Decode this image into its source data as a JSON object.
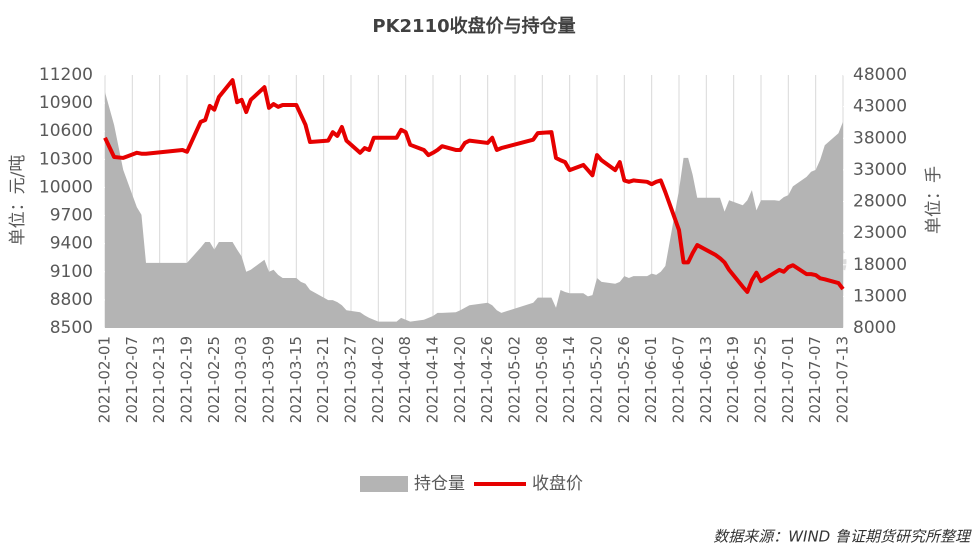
{
  "chart_data": {
    "type": "line",
    "title": "PK2110收盘价与持仓量",
    "y_label": "单位：元/吨",
    "y2_label": "单位：手",
    "source": "数据来源：WIND 鲁证期货研究所整理",
    "x": [
      "2021-02-01",
      "2021-02-03",
      "2021-02-05",
      "2021-02-08",
      "2021-02-09",
      "2021-02-10",
      "2021-02-18",
      "2021-02-19",
      "2021-02-22",
      "2021-02-23",
      "2021-02-24",
      "2021-02-25",
      "2021-02-26",
      "2021-03-01",
      "2021-03-02",
      "2021-03-03",
      "2021-03-04",
      "2021-03-05",
      "2021-03-08",
      "2021-03-09",
      "2021-03-10",
      "2021-03-11",
      "2021-03-12",
      "2021-03-15",
      "2021-03-16",
      "2021-03-17",
      "2021-03-18",
      "2021-03-22",
      "2021-03-23",
      "2021-03-24",
      "2021-03-25",
      "2021-03-26",
      "2021-03-29",
      "2021-03-30",
      "2021-03-31",
      "2021-04-01",
      "2021-04-02",
      "2021-04-06",
      "2021-04-07",
      "2021-04-08",
      "2021-04-09",
      "2021-04-12",
      "2021-04-13",
      "2021-04-14",
      "2021-04-15",
      "2021-04-16",
      "2021-04-19",
      "2021-04-20",
      "2021-04-21",
      "2021-04-22",
      "2021-04-26",
      "2021-04-27",
      "2021-04-28",
      "2021-04-29",
      "2021-05-06",
      "2021-05-07",
      "2021-05-10",
      "2021-05-11",
      "2021-05-12",
      "2021-05-13",
      "2021-05-14",
      "2021-05-17",
      "2021-05-18",
      "2021-05-19",
      "2021-05-20",
      "2021-05-21",
      "2021-05-24",
      "2021-05-25",
      "2021-05-26",
      "2021-05-27",
      "2021-05-28",
      "2021-05-31",
      "2021-06-01",
      "2021-06-02",
      "2021-06-03",
      "2021-06-04",
      "2021-06-07",
      "2021-06-08",
      "2021-06-09",
      "2021-06-10",
      "2021-06-11",
      "2021-06-15",
      "2021-06-16",
      "2021-06-17",
      "2021-06-18",
      "2021-06-21",
      "2021-06-22",
      "2021-06-23",
      "2021-06-24",
      "2021-06-25",
      "2021-06-28",
      "2021-06-29",
      "2021-06-30",
      "2021-07-01",
      "2021-07-02",
      "2021-07-05",
      "2021-07-06",
      "2021-07-07",
      "2021-07-08",
      "2021-07-09",
      "2021-07-12",
      "2021-07-13"
    ],
    "series": [
      {
        "name": "持仓量",
        "type": "area",
        "axis": "y2",
        "color": "#b4b4b4",
        "values": [
          45300,
          40100,
          33000,
          27100,
          25900,
          18300,
          18300,
          18300,
          20700,
          21600,
          21600,
          20400,
          21600,
          21600,
          20400,
          19300,
          16900,
          17200,
          18800,
          16900,
          17200,
          16400,
          15900,
          15900,
          15300,
          15000,
          14000,
          12400,
          12400,
          12100,
          11600,
          10800,
          10500,
          10000,
          9600,
          9300,
          9000,
          9000,
          9600,
          9300,
          9000,
          9300,
          9600,
          9900,
          10400,
          10400,
          10500,
          10800,
          11200,
          11600,
          12000,
          11600,
          10800,
          10400,
          12000,
          12800,
          12800,
          11200,
          14000,
          13700,
          13500,
          13500,
          13000,
          13200,
          15900,
          15300,
          15000,
          15300,
          16200,
          15900,
          16200,
          16200,
          16600,
          16400,
          16900,
          17800,
          29800,
          34900,
          34900,
          32200,
          28600,
          28600,
          28600,
          26400,
          28200,
          27400,
          28200,
          29800,
          26600,
          28200,
          28200,
          28100,
          28700,
          29000,
          30400,
          31900,
          32700,
          33000,
          34600,
          36900,
          38800,
          40600
        ]
      },
      {
        "name": "收盘价",
        "type": "line",
        "color": "#e60000",
        "values": [
          10530,
          10325,
          10315,
          10370,
          10360,
          10360,
          10400,
          10380,
          10700,
          10720,
          10870,
          10830,
          10965,
          11145,
          10910,
          10935,
          10805,
          10935,
          11070,
          10850,
          10890,
          10860,
          10880,
          10880,
          10775,
          10670,
          10485,
          10500,
          10590,
          10550,
          10645,
          10500,
          10370,
          10420,
          10400,
          10530,
          10530,
          10530,
          10615,
          10590,
          10455,
          10400,
          10345,
          10370,
          10400,
          10440,
          10400,
          10400,
          10475,
          10500,
          10475,
          10530,
          10400,
          10420,
          10510,
          10580,
          10590,
          10315,
          10290,
          10270,
          10185,
          10240,
          10185,
          10130,
          10345,
          10290,
          10185,
          10270,
          10075,
          10060,
          10075,
          10060,
          10035,
          10060,
          10075,
          9950,
          9545,
          9200,
          9200,
          9300,
          9385,
          9280,
          9245,
          9200,
          9120,
          8940,
          8885,
          9010,
          9090,
          9000,
          9090,
          9120,
          9100,
          9150,
          9170,
          9075,
          9075,
          9065,
          9030,
          9020,
          8980,
          8915
        ]
      }
    ],
    "xlim": [
      "2021-02-01",
      "2021-07-13"
    ],
    "xticks": [
      "2021-02-01",
      "2021-02-07",
      "2021-02-13",
      "2021-02-19",
      "2021-02-25",
      "2021-03-03",
      "2021-03-09",
      "2021-03-15",
      "2021-03-21",
      "2021-03-27",
      "2021-04-02",
      "2021-04-08",
      "2021-04-14",
      "2021-04-20",
      "2021-04-26",
      "2021-05-02",
      "2021-05-08",
      "2021-05-14",
      "2021-05-20",
      "2021-05-26",
      "2021-06-01",
      "2021-06-07",
      "2021-06-13",
      "2021-06-19",
      "2021-06-25",
      "2021-07-01",
      "2021-07-07",
      "2021-07-13"
    ],
    "ylim": [
      8500,
      11200
    ],
    "yticks": [
      8500,
      8800,
      9100,
      9400,
      9700,
      10000,
      10300,
      10600,
      10900,
      11200
    ],
    "y2lim": [
      8000,
      48000
    ],
    "y2ticks": [
      8000,
      13000,
      18000,
      23000,
      28000,
      33000,
      38000,
      43000,
      48000
    ],
    "grid": "x"
  }
}
